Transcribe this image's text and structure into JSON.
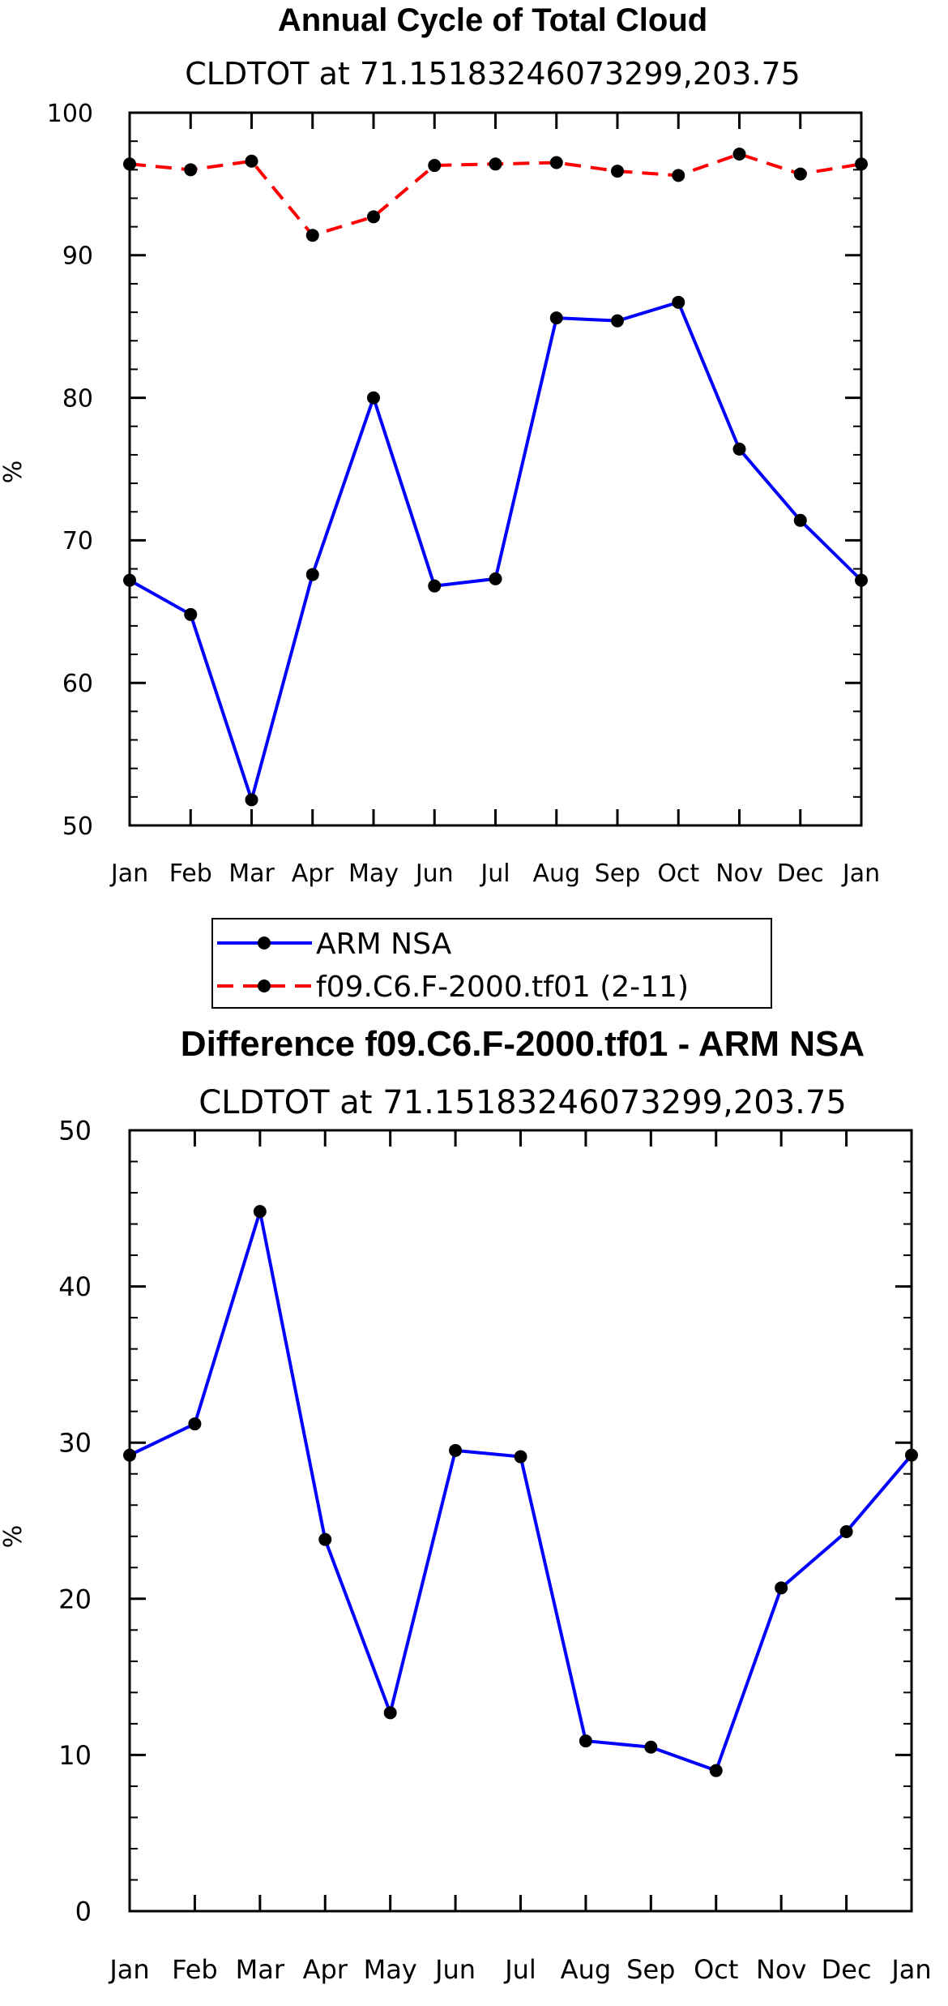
{
  "chart_data": [
    {
      "type": "line",
      "title": "Annual Cycle of Total Cloud",
      "subtitle": "CLDTOT at 71.15183246073299,203.75",
      "xlabel": "",
      "ylabel": "%",
      "categories": [
        "Jan",
        "Feb",
        "Mar",
        "Apr",
        "May",
        "Jun",
        "Jul",
        "Aug",
        "Sep",
        "Oct",
        "Nov",
        "Dec",
        "Jan"
      ],
      "ylim": [
        50,
        100
      ],
      "yticks": [
        50,
        60,
        70,
        80,
        90,
        100
      ],
      "series": [
        {
          "name": "ARM NSA",
          "color": "#0000ff",
          "dash": "solid",
          "values": [
            67.2,
            64.8,
            51.8,
            67.6,
            80.0,
            66.8,
            67.3,
            85.6,
            85.4,
            86.7,
            76.4,
            71.4,
            67.2
          ]
        },
        {
          "name": "f09.C6.F-2000.tf01 (2-11)",
          "color": "#ff0000",
          "dash": "dashed",
          "values": [
            96.4,
            96.0,
            96.6,
            91.4,
            92.7,
            96.3,
            96.4,
            96.5,
            95.9,
            95.6,
            97.1,
            95.7,
            96.4
          ]
        }
      ],
      "legend": {
        "placement": "below",
        "entries": [
          "ARM NSA",
          "f09.C6.F-2000.tf01 (2-11)"
        ]
      }
    },
    {
      "type": "line",
      "title": "Difference f09.C6.F-2000.tf01 - ARM NSA",
      "subtitle": "CLDTOT at 71.15183246073299,203.75",
      "xlabel": "",
      "ylabel": "%",
      "categories": [
        "Jan",
        "Feb",
        "Mar",
        "Apr",
        "May",
        "Jun",
        "Jul",
        "Aug",
        "Sep",
        "Oct",
        "Nov",
        "Dec",
        "Jan"
      ],
      "ylim": [
        0,
        50
      ],
      "yticks": [
        0,
        10,
        20,
        30,
        40,
        50
      ],
      "series": [
        {
          "name": "Difference",
          "color": "#0000ff",
          "dash": "solid",
          "values": [
            29.2,
            31.2,
            44.8,
            23.8,
            12.7,
            29.5,
            29.1,
            10.9,
            10.5,
            9.0,
            20.7,
            24.3,
            29.2
          ]
        }
      ]
    }
  ]
}
